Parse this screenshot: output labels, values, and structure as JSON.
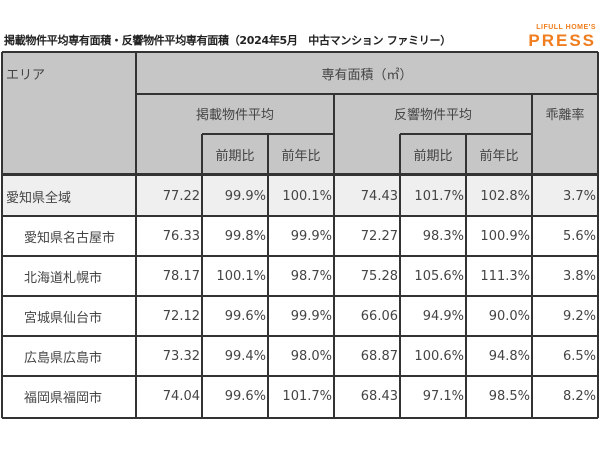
{
  "title": "掲載物件平均専有面積・反響物件平均専有面積（2024年5月　中古マンション ファミリー）",
  "logo": {
    "top": "LIFULL HOME'S",
    "bottom": "PRESS"
  },
  "header": {
    "area": "エリア",
    "main": "専有面積（㎡）",
    "listing_avg": "掲載物件平均",
    "response_avg": "反響物件平均",
    "gap_rate": "乖離率",
    "prev_period": "前期比",
    "prev_year": "前年比"
  },
  "rows": [
    {
      "area": "愛知県全域",
      "l_avg": "77.22",
      "l_pp": "99.9%",
      "l_py": "100.1%",
      "r_avg": "74.43",
      "r_pp": "101.7%",
      "r_py": "102.8%",
      "gap": "3.7%"
    },
    {
      "area": "愛知県名古屋市",
      "l_avg": "76.33",
      "l_pp": "99.8%",
      "l_py": "99.9%",
      "r_avg": "72.27",
      "r_pp": "98.3%",
      "r_py": "100.9%",
      "gap": "5.6%"
    },
    {
      "area": "北海道札幌市",
      "l_avg": "78.17",
      "l_pp": "100.1%",
      "l_py": "98.7%",
      "r_avg": "75.28",
      "r_pp": "105.6%",
      "r_py": "111.3%",
      "gap": "3.8%"
    },
    {
      "area": "宮城県仙台市",
      "l_avg": "72.12",
      "l_pp": "99.6%",
      "l_py": "99.9%",
      "r_avg": "66.06",
      "r_pp": "94.9%",
      "r_py": "90.0%",
      "gap": "9.2%"
    },
    {
      "area": "広島県広島市",
      "l_avg": "73.32",
      "l_pp": "99.4%",
      "l_py": "98.0%",
      "r_avg": "68.87",
      "r_pp": "100.6%",
      "r_py": "94.8%",
      "gap": "6.5%"
    },
    {
      "area": "福岡県福岡市",
      "l_avg": "74.04",
      "l_pp": "99.6%",
      "l_py": "101.7%",
      "r_avg": "68.43",
      "r_pp": "97.1%",
      "r_py": "98.5%",
      "gap": "8.2%"
    }
  ]
}
